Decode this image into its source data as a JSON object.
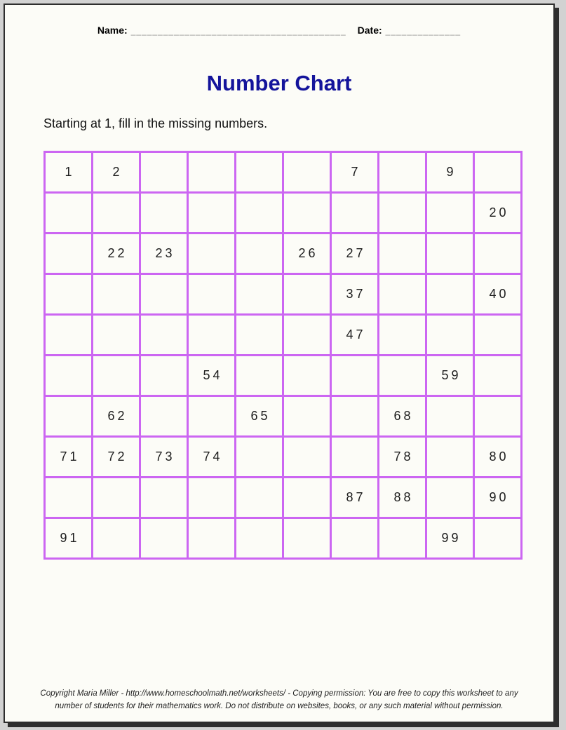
{
  "page": {
    "header": {
      "name_label": "Name:",
      "name_line": "________________________________________",
      "date_label": "Date:",
      "date_line": "______________"
    },
    "title": "Number Chart",
    "instruction": "Starting at 1, fill in the missing numbers.",
    "grid": {
      "rows": 10,
      "cols": 10,
      "cells": [
        [
          "1",
          "2",
          "",
          "",
          "",
          "",
          "7",
          "",
          "9",
          ""
        ],
        [
          "",
          "",
          "",
          "",
          "",
          "",
          "",
          "",
          "",
          "20"
        ],
        [
          "",
          "22",
          "23",
          "",
          "",
          "26",
          "27",
          "",
          "",
          ""
        ],
        [
          "",
          "",
          "",
          "",
          "",
          "",
          "37",
          "",
          "",
          "40"
        ],
        [
          "",
          "",
          "",
          "",
          "",
          "",
          "47",
          "",
          "",
          ""
        ],
        [
          "",
          "",
          "",
          "54",
          "",
          "",
          "",
          "",
          "59",
          ""
        ],
        [
          "",
          "62",
          "",
          "",
          "65",
          "",
          "",
          "68",
          "",
          ""
        ],
        [
          "71",
          "72",
          "73",
          "74",
          "",
          "",
          "",
          "78",
          "",
          "80"
        ],
        [
          "",
          "",
          "",
          "",
          "",
          "",
          "87",
          "88",
          "",
          "90"
        ],
        [
          "91",
          "",
          "",
          "",
          "",
          "",
          "",
          "",
          "99",
          ""
        ]
      ]
    },
    "footer": {
      "line1": "Copyright Maria Miller - http://www.homeschoolmath.net/worksheets/ - Copying permission: You are free to copy this worksheet to any",
      "line2": "number of students for their mathematics work. Do not distribute on websites, books, or any such material without permission."
    },
    "colors": {
      "grid_line": "#cc66f2",
      "cell_bg": "#fcfcf7",
      "title_text": "#14149b",
      "page_bg": "#fcfcf7",
      "outer_bg": "#d2d2d2",
      "frame": "#2e2e2e",
      "fill_line_text": "#8a8a8a"
    }
  }
}
